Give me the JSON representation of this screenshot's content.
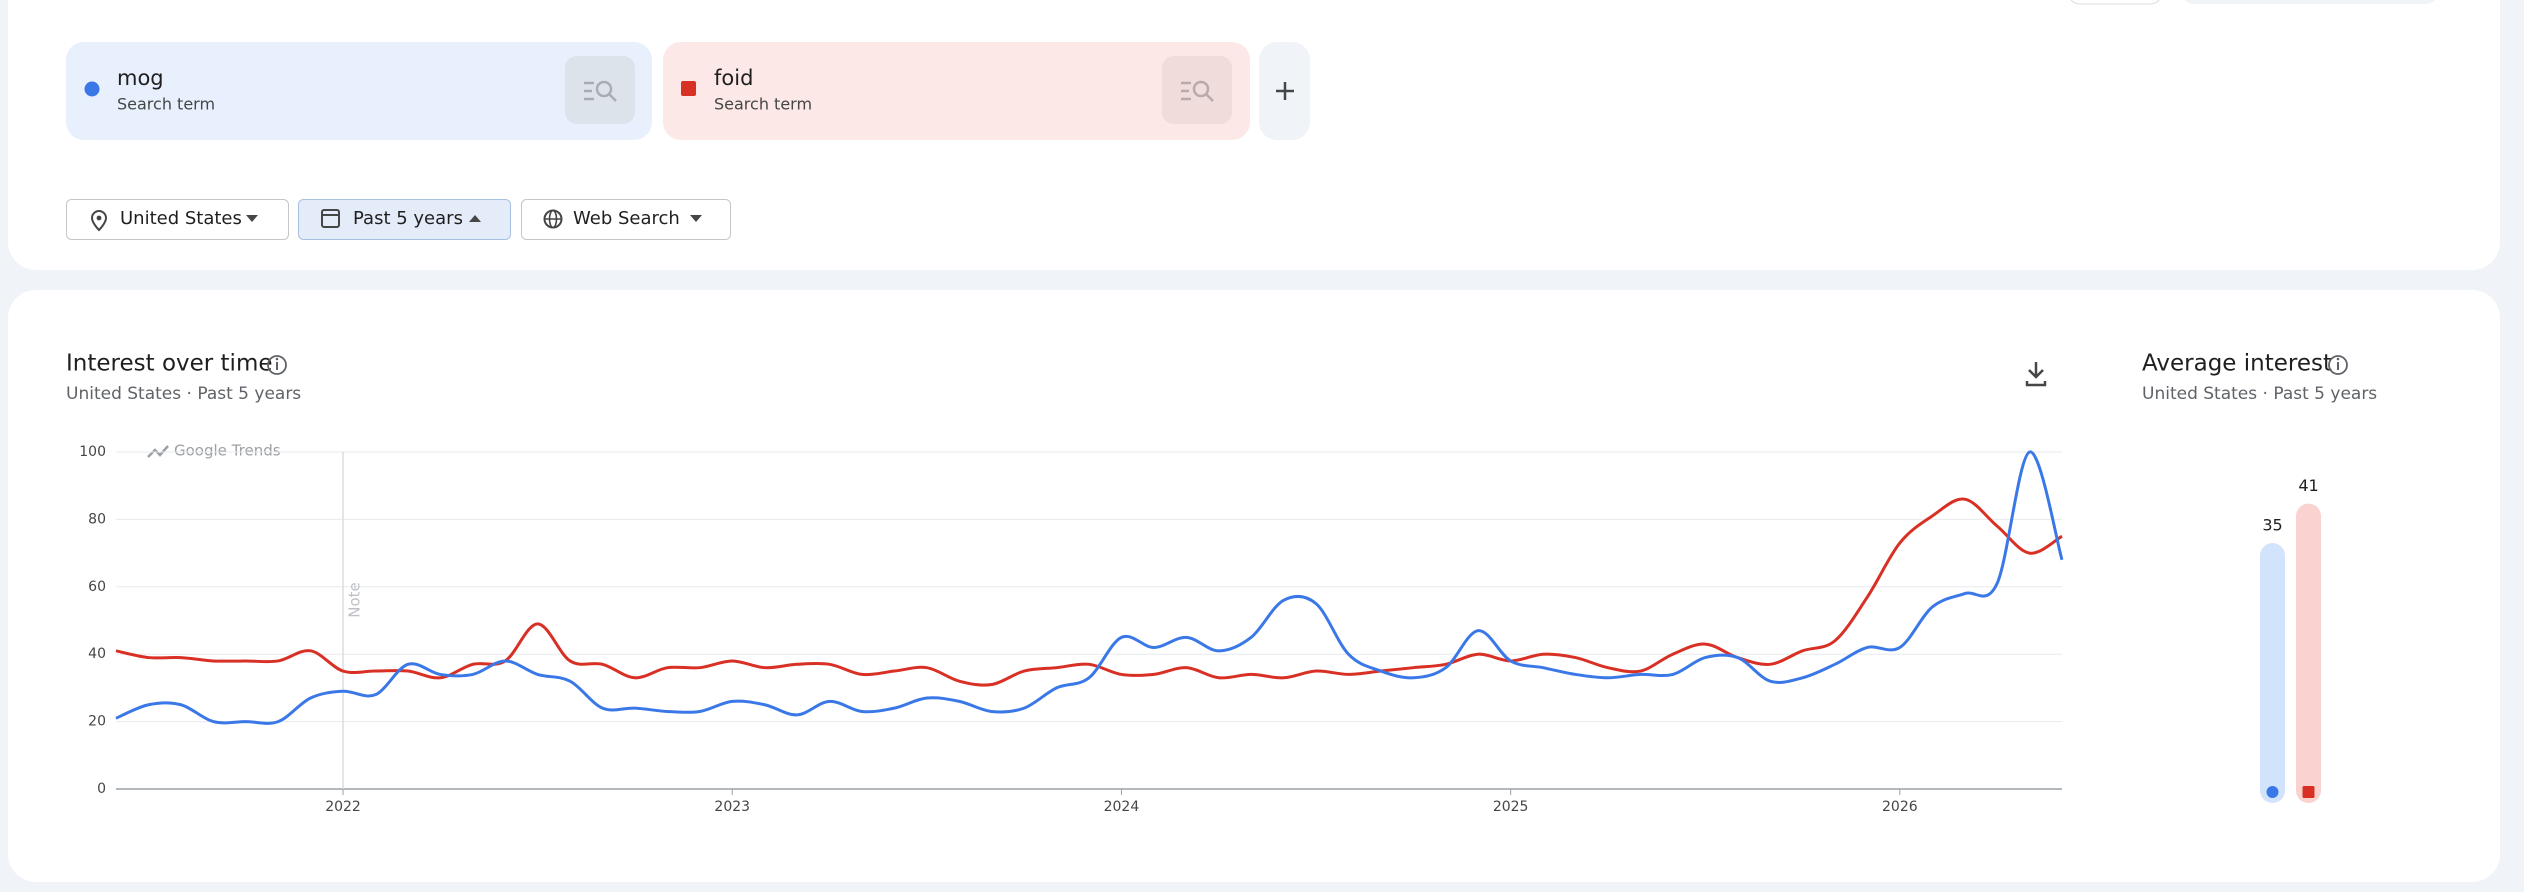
{
  "search_terms": [
    {
      "name": "mog",
      "label": "Search term",
      "color": "#3b78e7",
      "card": "#e8f0fe"
    },
    {
      "name": "foid",
      "label": "Search term",
      "color": "#d93025",
      "card": "#fce8e6"
    }
  ],
  "filters": [
    "United States",
    "Past 5 years",
    "Web Search"
  ],
  "chart_data": [
    {
      "type": "line",
      "title": "Interest over time",
      "subtitle": "United States · Past 5 years",
      "watermark": "Google Trends",
      "annotation": "Note",
      "categories": [
        null,
        null,
        null,
        null,
        null,
        null,
        null,
        "2022",
        null,
        null,
        null,
        null,
        null,
        null,
        null,
        null,
        null,
        null,
        null,
        "2023",
        null,
        null,
        null,
        null,
        null,
        null,
        null,
        null,
        null,
        null,
        null,
        "2024",
        null,
        null,
        null,
        null,
        null,
        null,
        null,
        null,
        null,
        null,
        null,
        "2025",
        null,
        null,
        null,
        null,
        null,
        null,
        null,
        null,
        null,
        null,
        null,
        "2026",
        null,
        null,
        null,
        null,
        null
      ],
      "series": [
        {
          "color": "#3b78e7",
          "values": [
            21,
            25,
            25,
            20,
            20,
            20,
            27,
            29,
            28,
            37,
            34,
            34,
            38,
            34,
            32,
            24,
            24,
            23,
            23,
            26,
            25,
            22,
            26,
            23,
            24,
            27,
            26,
            23,
            24,
            30,
            33,
            45,
            42,
            45,
            41,
            45,
            56,
            55,
            40,
            35,
            33,
            36,
            47,
            38,
            36,
            34,
            33,
            34,
            34,
            39,
            39,
            32,
            33,
            37,
            42,
            42,
            54,
            58,
            61,
            100,
            68
          ]
        },
        {
          "color": "#d93025",
          "values": [
            41,
            39,
            39,
            38,
            38,
            38,
            41,
            35,
            35,
            35,
            33,
            37,
            38,
            49,
            38,
            37,
            33,
            36,
            36,
            38,
            36,
            37,
            37,
            34,
            35,
            36,
            32,
            31,
            35,
            36,
            37,
            34,
            34,
            36,
            33,
            34,
            33,
            35,
            34,
            35,
            36,
            37,
            40,
            38,
            40,
            39,
            36,
            35,
            40,
            43,
            39,
            37,
            41,
            44,
            57,
            73,
            81,
            86,
            78,
            70,
            75
          ]
        }
      ],
      "ylim": [
        0,
        100
      ],
      "yticks": [
        0,
        20,
        40,
        60,
        80,
        100
      ],
      "grid": true
    },
    {
      "type": "bar",
      "title": "Average interest",
      "subtitle": "United States · Past 5 years",
      "values": [
        35,
        41
      ],
      "colors": [
        "#d2e3fc",
        "#fad2cf"
      ],
      "marker_colors": [
        "#3b78e7",
        "#d93025"
      ]
    }
  ]
}
